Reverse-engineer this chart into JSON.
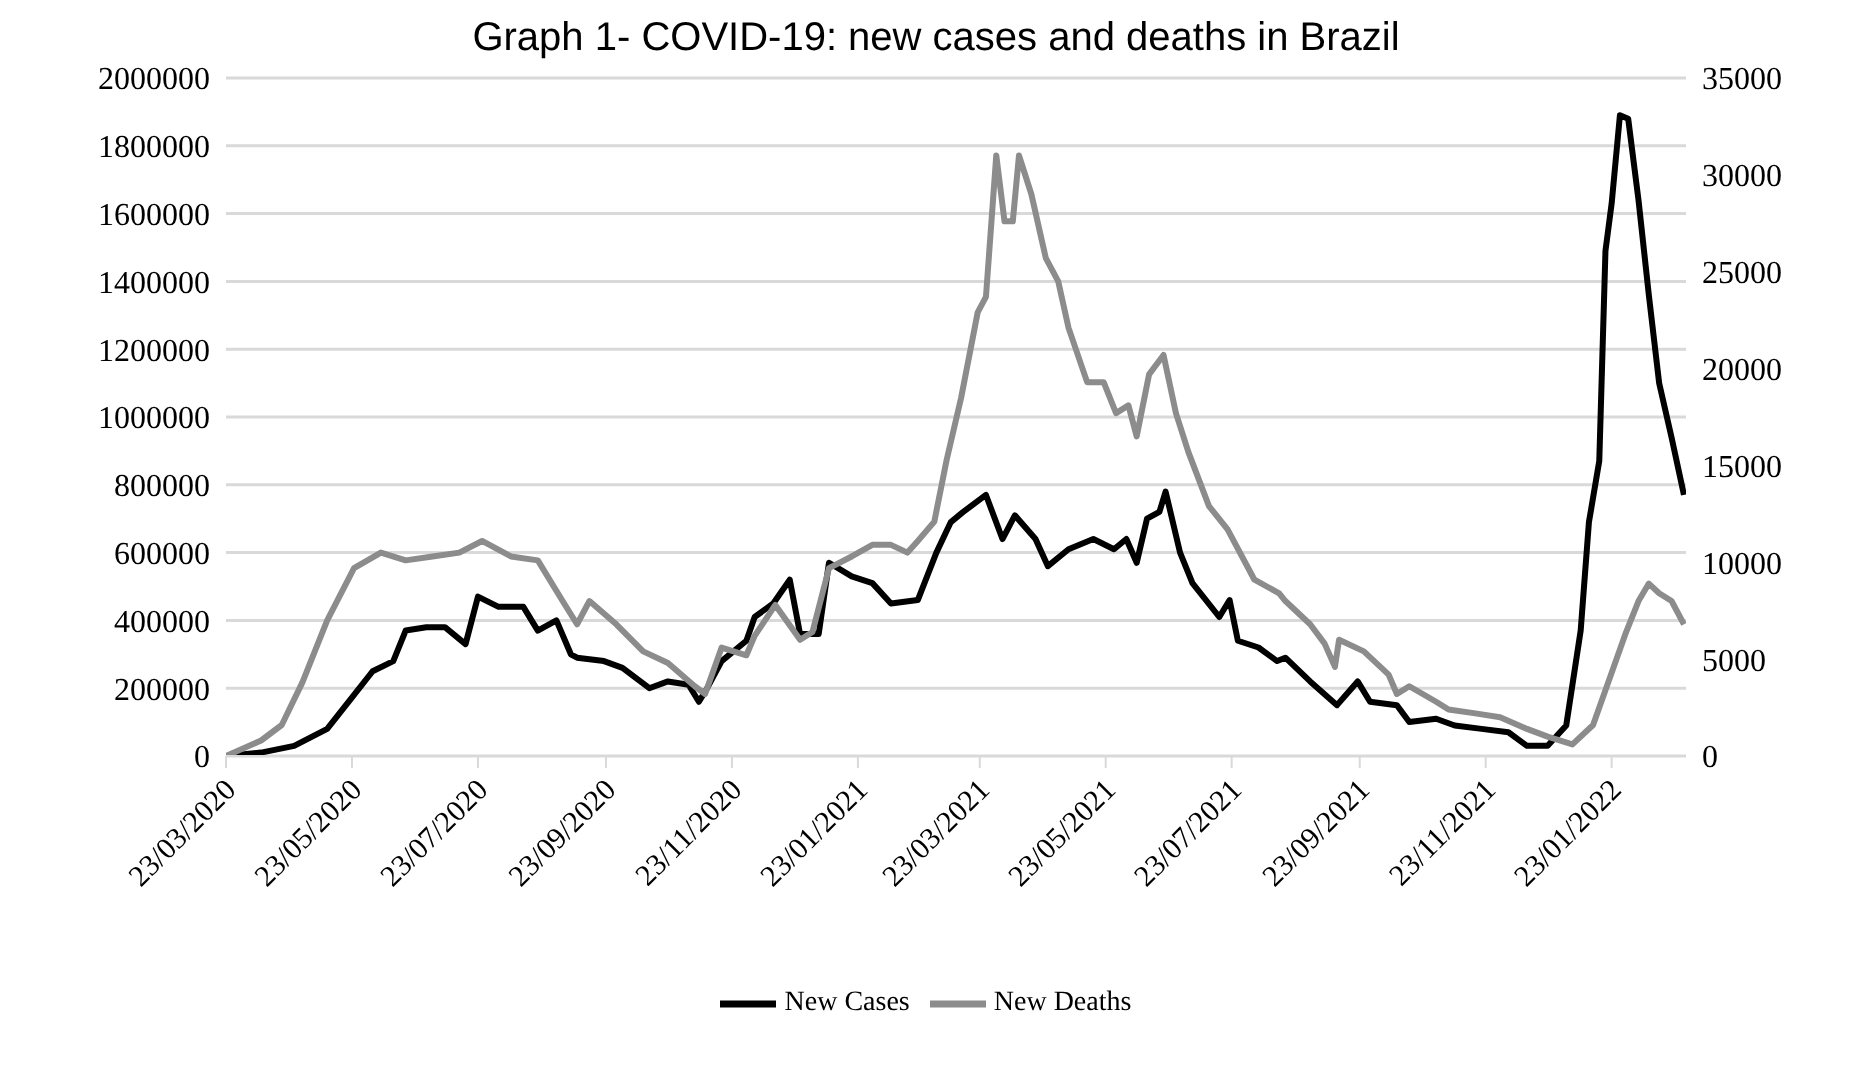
{
  "chart_data": {
    "type": "line",
    "title": "Graph 1- COVID-19: new cases and deaths in Brazil",
    "xlim": [
      "2020-03-23",
      "2022-02-28"
    ],
    "xticks": [
      {
        "value": "2020-03-23",
        "label": "23/03/2020"
      },
      {
        "value": "2020-05-23",
        "label": "23/05/2020"
      },
      {
        "value": "2020-07-23",
        "label": "23/07/2020"
      },
      {
        "value": "2020-09-23",
        "label": "23/09/2020"
      },
      {
        "value": "2020-11-23",
        "label": "23/11/2020"
      },
      {
        "value": "2021-01-23",
        "label": "23/01/2021"
      },
      {
        "value": "2021-03-23",
        "label": "23/03/2021"
      },
      {
        "value": "2021-05-23",
        "label": "23/05/2021"
      },
      {
        "value": "2021-07-23",
        "label": "23/07/2021"
      },
      {
        "value": "2021-09-23",
        "label": "23/09/2021"
      },
      {
        "value": "2021-11-23",
        "label": "23/11/2021"
      },
      {
        "value": "2022-01-23",
        "label": "23/01/2022"
      }
    ],
    "ylim": [
      0,
      2000000
    ],
    "yticks": [
      0,
      200000,
      400000,
      600000,
      800000,
      1000000,
      1200000,
      1400000,
      1600000,
      1800000,
      2000000
    ],
    "y2lim": [
      0,
      35000
    ],
    "y2ticks": [
      0,
      5000,
      10000,
      15000,
      20000,
      25000,
      30000,
      35000
    ],
    "grid": "y",
    "legend": "bottom",
    "marker": "none",
    "line_style": "solid",
    "series": [
      {
        "name": "New Cases",
        "color": "#000000",
        "x": [
          "2020-03-23",
          "2020-04-09",
          "2020-04-25",
          "2020-05-11",
          "2020-05-24",
          "2020-06-02",
          "2020-06-12",
          "2020-06-18",
          "2020-06-28",
          "2020-07-07",
          "2020-07-17",
          "2020-07-23",
          "2020-08-02",
          "2020-08-14",
          "2020-08-21",
          "2020-08-30",
          "2020-09-06",
          "2020-09-09",
          "2020-09-22",
          "2020-10-01",
          "2020-10-14",
          "2020-10-23",
          "2020-11-02",
          "2020-11-07",
          "2020-11-11",
          "2020-11-18",
          "2020-11-30",
          "2020-12-04",
          "2020-12-13",
          "2020-12-21",
          "2020-12-26",
          "2021-01-04",
          "2021-01-09",
          "2021-01-20",
          "2021-01-30",
          "2021-02-08",
          "2021-02-21",
          "2021-03-02",
          "2021-03-09",
          "2021-03-15",
          "2021-03-26",
          "2021-04-03",
          "2021-04-09",
          "2021-04-19",
          "2021-04-25",
          "2021-05-05",
          "2021-05-17",
          "2021-05-27",
          "2021-06-02",
          "2021-06-07",
          "2021-06-12",
          "2021-06-18",
          "2021-06-21",
          "2021-06-28",
          "2021-07-04",
          "2021-07-17",
          "2021-07-22",
          "2021-07-26",
          "2021-08-05",
          "2021-08-14",
          "2021-08-18",
          "2021-08-30",
          "2021-09-12",
          "2021-09-22",
          "2021-09-28",
          "2021-10-11",
          "2021-10-17",
          "2021-10-30",
          "2021-11-08",
          "2021-11-21",
          "2021-12-04",
          "2021-12-13",
          "2021-12-23",
          "2022-01-01",
          "2022-01-08",
          "2022-01-12",
          "2022-01-17",
          "2022-01-20",
          "2022-01-23",
          "2022-01-27",
          "2022-01-31",
          "2022-02-05",
          "2022-02-10",
          "2022-02-15",
          "2022-02-21",
          "2022-02-27"
        ],
        "values": [
          0,
          10000,
          30000,
          80000,
          180000,
          250000,
          280000,
          370000,
          380000,
          380000,
          330000,
          470000,
          440000,
          440000,
          370000,
          400000,
          300000,
          290000,
          280000,
          260000,
          200000,
          220000,
          210000,
          160000,
          200000,
          280000,
          340000,
          410000,
          450000,
          520000,
          360000,
          360000,
          570000,
          530000,
          510000,
          450000,
          460000,
          600000,
          690000,
          720000,
          770000,
          640000,
          710000,
          640000,
          560000,
          610000,
          640000,
          610000,
          640000,
          570000,
          700000,
          720000,
          780000,
          600000,
          510000,
          410000,
          460000,
          340000,
          320000,
          280000,
          290000,
          220000,
          150000,
          220000,
          160000,
          150000,
          100000,
          110000,
          90000,
          80000,
          70000,
          30000,
          30000,
          90000,
          370000,
          690000,
          870000,
          1490000,
          1630000,
          1890000,
          1880000,
          1640000,
          1360000,
          1100000,
          940000,
          770000
        ]
      },
      {
        "name": "New Deaths",
        "color": "#8c8c8c",
        "axis": "y2",
        "x": [
          "2020-03-23",
          "2020-04-09",
          "2020-04-19",
          "2020-04-29",
          "2020-05-11",
          "2020-05-24",
          "2020-06-06",
          "2020-06-18",
          "2020-07-01",
          "2020-07-14",
          "2020-07-25",
          "2020-08-08",
          "2020-08-21",
          "2020-09-02",
          "2020-09-09",
          "2020-09-15",
          "2020-09-28",
          "2020-10-11",
          "2020-10-23",
          "2020-11-05",
          "2020-11-10",
          "2020-11-18",
          "2020-11-30",
          "2020-12-04",
          "2020-12-14",
          "2020-12-26",
          "2021-01-01",
          "2021-01-09",
          "2021-01-20",
          "2021-01-30",
          "2021-02-08",
          "2021-02-16",
          "2021-02-21",
          "2021-03-01",
          "2021-03-07",
          "2021-03-14",
          "2021-03-22",
          "2021-03-26",
          "2021-03-31",
          "2021-04-04",
          "2021-04-08",
          "2021-04-11",
          "2021-04-17",
          "2021-04-24",
          "2021-04-30",
          "2021-05-05",
          "2021-05-14",
          "2021-05-22",
          "2021-05-28",
          "2021-06-03",
          "2021-06-07",
          "2021-06-13",
          "2021-06-20",
          "2021-06-26",
          "2021-07-02",
          "2021-07-12",
          "2021-07-21",
          "2021-08-03",
          "2021-08-15",
          "2021-08-18",
          "2021-08-30",
          "2021-09-06",
          "2021-09-11",
          "2021-09-13",
          "2021-09-25",
          "2021-10-07",
          "2021-10-11",
          "2021-10-17",
          "2021-10-30",
          "2021-11-05",
          "2021-11-18",
          "2021-11-30",
          "2021-12-13",
          "2021-12-23",
          "2022-01-04",
          "2022-01-14",
          "2022-01-30",
          "2022-02-05",
          "2022-02-10",
          "2022-02-15",
          "2022-02-21",
          "2022-02-27"
        ],
        "values": [
          0,
          800,
          1600,
          3800,
          7000,
          9700,
          10500,
          10100,
          10300,
          10500,
          11100,
          10300,
          10100,
          8000,
          6800,
          8000,
          6800,
          5400,
          4800,
          3600,
          3200,
          5600,
          5200,
          6200,
          7800,
          6000,
          6400,
          9700,
          10300,
          10900,
          10900,
          10500,
          11100,
          12100,
          15300,
          18500,
          22900,
          23700,
          31000,
          27600,
          27600,
          31000,
          29000,
          25700,
          24500,
          22100,
          19300,
          19300,
          17700,
          18100,
          16500,
          19700,
          20700,
          17700,
          15700,
          12900,
          11700,
          9100,
          8400,
          8000,
          6800,
          5800,
          4600,
          6000,
          5400,
          4200,
          3200,
          3600,
          2800,
          2400,
          2200,
          2000,
          1400,
          1000,
          600,
          1600,
          6400,
          8000,
          8900,
          8400,
          8000,
          6800
        ]
      }
    ]
  }
}
